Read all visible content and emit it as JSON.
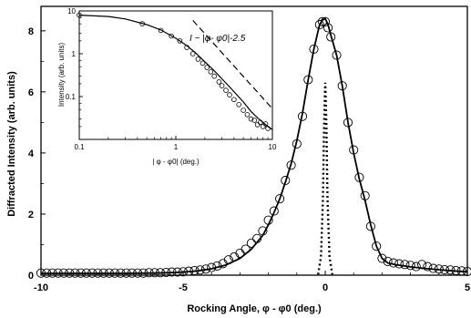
{
  "chart_data": [
    {
      "type": "scatter",
      "xlabel": "Rocking Angle, φ - φ0 (deg.)",
      "ylabel": "Diffracted Intensity (arb. units)",
      "xlim": [
        -10,
        5
      ],
      "ylim": [
        0,
        8.8
      ],
      "xticks": [
        "-10",
        "-5",
        "0",
        "5"
      ],
      "yticks": [
        "0",
        "2",
        "4",
        "6",
        "8"
      ],
      "grid": false,
      "series": [
        {
          "kind": "markers",
          "x": [
            -10.0,
            -9.8,
            -9.6,
            -9.4,
            -9.2,
            -9.0,
            -8.8,
            -8.6,
            -8.4,
            -8.2,
            -8.0,
            -7.8,
            -7.6,
            -7.4,
            -7.2,
            -7.0,
            -6.8,
            -6.6,
            -6.4,
            -6.2,
            -6.0,
            -5.8,
            -5.6,
            -5.4,
            -5.2,
            -5.0,
            -4.8,
            -4.6,
            -4.4,
            -4.2,
            -4.0,
            -3.8,
            -3.6,
            -3.4,
            -3.2,
            -3.0,
            -2.8,
            -2.6,
            -2.4,
            -2.2,
            -2.0,
            -1.8,
            -1.6,
            -1.4,
            -1.2,
            -1.0,
            -0.8,
            -0.6,
            -0.4,
            -0.2,
            -0.1,
            0.0,
            0.1,
            0.2,
            0.4,
            0.6,
            0.8,
            1.0,
            1.2,
            1.4,
            1.6,
            1.8,
            2.0,
            2.2,
            2.4,
            2.6,
            2.8,
            3.0,
            3.2,
            3.4,
            3.6,
            3.8,
            4.0,
            4.2,
            4.4,
            4.6,
            4.8,
            5.0
          ],
          "y": [
            0.07,
            0.07,
            0.07,
            0.07,
            0.07,
            0.07,
            0.07,
            0.07,
            0.07,
            0.07,
            0.07,
            0.07,
            0.07,
            0.07,
            0.07,
            0.07,
            0.07,
            0.07,
            0.07,
            0.08,
            0.08,
            0.08,
            0.09,
            0.1,
            0.1,
            0.11,
            0.13,
            0.15,
            0.17,
            0.2,
            0.25,
            0.3,
            0.38,
            0.5,
            0.6,
            0.72,
            0.85,
            1.05,
            1.2,
            1.45,
            1.8,
            2.1,
            2.5,
            3.1,
            3.6,
            4.3,
            5.2,
            6.4,
            7.4,
            8.2,
            8.3,
            8.3,
            8.1,
            7.8,
            7.2,
            6.2,
            5.0,
            4.1,
            3.2,
            2.6,
            1.6,
            0.95,
            0.55,
            0.45,
            0.4,
            0.37,
            0.35,
            0.32,
            0.28,
            0.35,
            0.28,
            0.22,
            0.2,
            0.18,
            0.17,
            0.15,
            0.14,
            0.12
          ]
        },
        {
          "kind": "fit-line",
          "x": [
            -10.0,
            -9.0,
            -8.0,
            -7.0,
            -6.0,
            -5.5,
            -5.0,
            -4.5,
            -4.0,
            -3.5,
            -3.0,
            -2.6,
            -2.2,
            -2.0,
            -1.8,
            -1.6,
            -1.4,
            -1.2,
            -1.0,
            -0.8,
            -0.6,
            -0.4,
            -0.2,
            -0.1,
            0.0,
            0.1,
            0.2,
            0.4,
            0.6,
            0.8,
            1.0,
            1.2,
            1.4,
            1.6,
            1.8,
            2.0,
            2.2,
            2.5,
            3.0,
            3.5,
            4.0,
            4.5,
            5.0
          ],
          "y": [
            0.06,
            0.06,
            0.06,
            0.06,
            0.07,
            0.08,
            0.1,
            0.14,
            0.21,
            0.33,
            0.55,
            0.85,
            1.3,
            1.65,
            2.05,
            2.5,
            3.05,
            3.65,
            4.4,
            5.3,
            6.4,
            7.4,
            8.2,
            8.35,
            8.4,
            8.2,
            7.85,
            7.2,
            6.2,
            5.0,
            4.0,
            3.15,
            2.45,
            1.65,
            0.95,
            0.55,
            0.4,
            0.34,
            0.27,
            0.22,
            0.18,
            0.14,
            0.11
          ]
        },
        {
          "kind": "dotted-line",
          "x": [
            -0.25,
            -0.15,
            -0.08,
            -0.04,
            0.0,
            0.04,
            0.08,
            0.15,
            0.25
          ],
          "y": [
            0.02,
            0.6,
            2.5,
            5.0,
            6.3,
            5.0,
            2.5,
            0.6,
            0.02
          ]
        }
      ]
    },
    {
      "type": "scatter",
      "xlabel": "| φ - φ0| (deg.)",
      "ylabel": "Intensity (arb. units)",
      "xscale": "log",
      "yscale": "log",
      "xlim": [
        0.1,
        10
      ],
      "ylim": [
        0.01,
        10
      ],
      "xticks": [
        "0.1",
        "1",
        "10"
      ],
      "yticks": [
        "0.1",
        "1",
        "10"
      ],
      "annotation": "I ~ |φ- φ0|-2.5",
      "series": [
        {
          "kind": "markers",
          "x": [
            0.1,
            0.45,
            0.7,
            0.9,
            1.1,
            1.3,
            1.5,
            1.7,
            1.9,
            2.1,
            2.3,
            2.5,
            2.8,
            3.0,
            3.3,
            3.6,
            4.0,
            4.5,
            5.0,
            5.5,
            6.0,
            6.5,
            7.0,
            7.5,
            8.0,
            8.5,
            9.0
          ],
          "y": [
            8.0,
            5.0,
            3.5,
            2.6,
            2.0,
            1.4,
            1.0,
            0.75,
            0.6,
            0.48,
            0.38,
            0.3,
            0.22,
            0.18,
            0.14,
            0.11,
            0.085,
            0.065,
            0.048,
            0.038,
            0.03,
            0.028,
            0.022,
            0.025,
            0.02,
            0.023,
            0.018
          ]
        },
        {
          "kind": "fit-line",
          "x": [
            0.1,
            0.2,
            0.3,
            0.5,
            0.7,
            1.0,
            1.3,
            1.6,
            2.0,
            2.5,
            3.0,
            4.0,
            5.0,
            6.0,
            7.0,
            8.0,
            9.0,
            10.0
          ],
          "y": [
            8.0,
            7.4,
            6.5,
            4.8,
            3.6,
            2.3,
            1.55,
            1.05,
            0.65,
            0.4,
            0.26,
            0.13,
            0.075,
            0.045,
            0.032,
            0.025,
            0.02,
            0.017
          ]
        },
        {
          "kind": "power-law-guide",
          "x": [
            1.5,
            10.0
          ],
          "y": [
            6.0,
            0.052
          ]
        }
      ]
    }
  ]
}
